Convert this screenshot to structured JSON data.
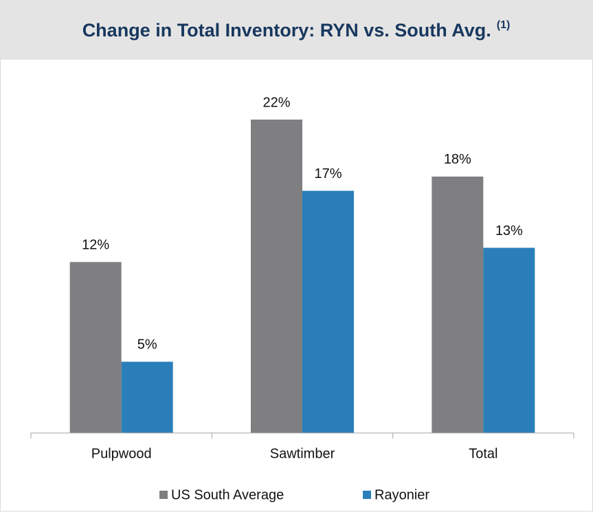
{
  "chart_data": {
    "type": "bar",
    "title": "Change in Total Inventory: RYN vs. South Avg.",
    "title_superscript": "(1)",
    "categories": [
      "Pulpwood",
      "Sawtimber",
      "Total"
    ],
    "series": [
      {
        "name": "US South Average",
        "color": "#7f7f81",
        "values": [
          12,
          22,
          18
        ],
        "value_labels": [
          "12%",
          "22%",
          "18%"
        ]
      },
      {
        "name": "Rayonier",
        "color": "#2a7fba",
        "values": [
          5,
          17,
          13
        ],
        "value_labels": [
          "5%",
          "17%",
          "13%"
        ]
      }
    ]
  }
}
